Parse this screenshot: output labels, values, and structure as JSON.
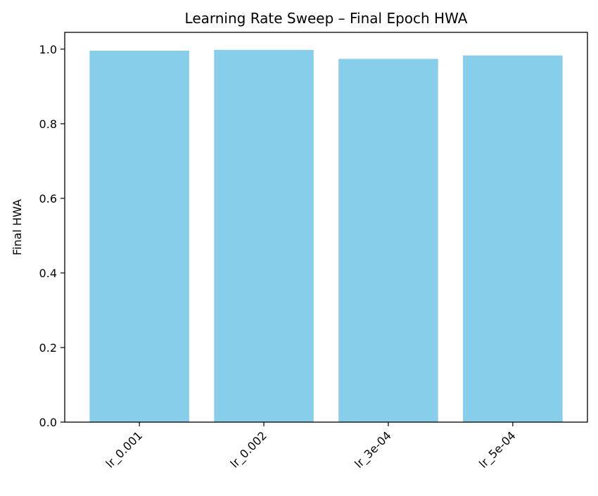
{
  "chart_data": {
    "type": "bar",
    "title": "Learning Rate Sweep – Final Epoch HWA",
    "xlabel": "",
    "ylabel": "Final HWA",
    "categories": [
      "lr_0.001",
      "lr_0.002",
      "lr_3e-04",
      "lr_5e-04"
    ],
    "values": [
      0.996,
      0.998,
      0.974,
      0.983
    ],
    "ylim": [
      0,
      1.045
    ],
    "yticks": [
      0.0,
      0.2,
      0.4,
      0.6,
      0.8,
      1.0
    ],
    "ytick_labels": [
      "0.0",
      "0.2",
      "0.4",
      "0.6",
      "0.8",
      "1.0"
    ],
    "bar_color": "#87ceeb",
    "grid": false,
    "legend": "none",
    "xtick_rotation": "45"
  }
}
